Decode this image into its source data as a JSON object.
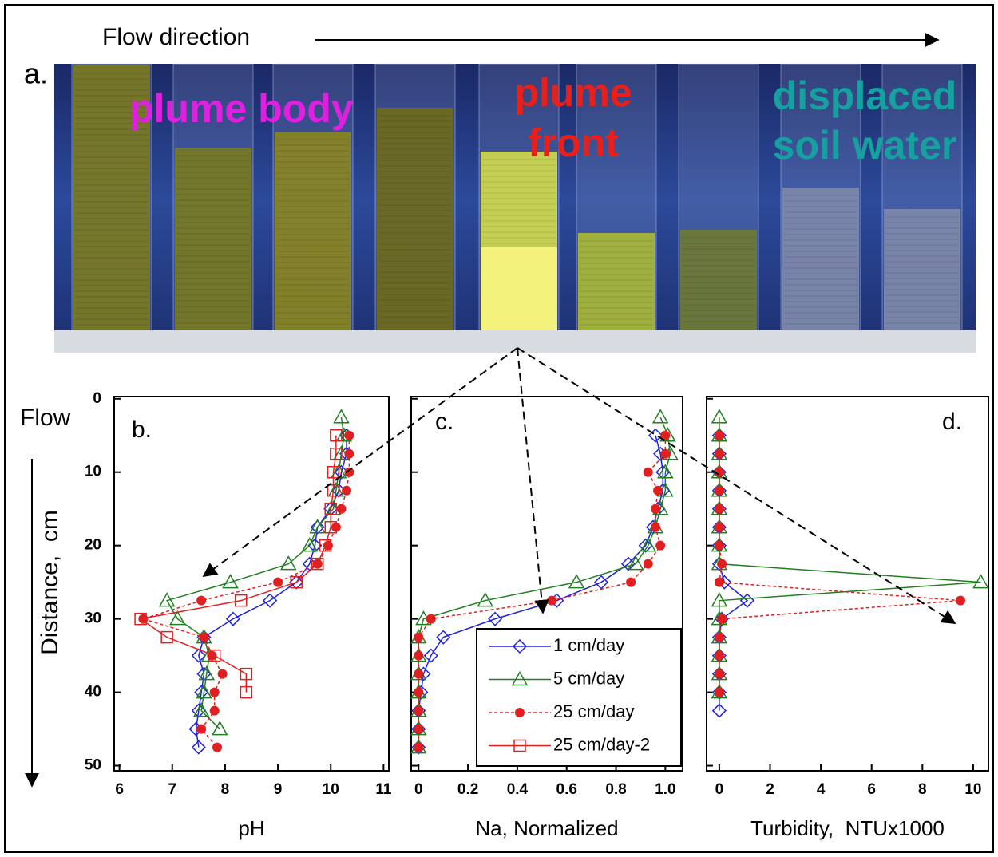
{
  "figure": {
    "flow_direction": "Flow direction",
    "panel_label": "a.",
    "plume_body": "plume body",
    "plume_front": [
      "plume",
      "front"
    ],
    "displaced": [
      "displaced",
      "soil water"
    ],
    "flow_label": "Flow"
  },
  "chart_data": [
    {
      "type": "line",
      "panel_label": "b.",
      "xlabel": "pH",
      "ylabel": "Distance,  cm",
      "xlim": [
        5.9,
        11.1
      ],
      "xticks": [
        6,
        7,
        8,
        9,
        10,
        11
      ],
      "ylim": [
        -0.3,
        50.7
      ],
      "y_inverted": true,
      "yticks": [
        0,
        10,
        20,
        30,
        40,
        50
      ],
      "series": [
        {
          "name": "1 cm/day",
          "color": "#2020e0",
          "marker": "diamond",
          "linestyle": "solid",
          "values": [
            5,
            7.5,
            10,
            12.5,
            15,
            17.5,
            20,
            22.5,
            25,
            27.5,
            30,
            32.5,
            35,
            37.5,
            40,
            42.5,
            45,
            47.5
          ],
          "x": [
            10.3,
            10.3,
            10.2,
            10.15,
            10.0,
            9.75,
            9.7,
            9.6,
            9.35,
            8.85,
            8.15,
            7.6,
            7.5,
            7.6,
            7.55,
            7.5,
            7.45,
            7.5
          ]
        },
        {
          "name": "5 cm/day",
          "color": "#208020",
          "marker": "triangle",
          "linestyle": "solid",
          "values": [
            2.5,
            5,
            7.5,
            10,
            12.5,
            15,
            17.5,
            20,
            22.5,
            25,
            27.5,
            30,
            32.5,
            35,
            37.5,
            40,
            42.5,
            45
          ],
          "x": [
            10.2,
            10.25,
            10.2,
            10.15,
            10.1,
            10.05,
            9.75,
            9.6,
            9.2,
            8.1,
            6.9,
            7.1,
            7.6,
            7.7,
            7.65,
            7.6,
            7.55,
            7.9
          ]
        },
        {
          "name": "25 cm/day",
          "color": "#e02020",
          "marker": "circle",
          "linestyle": "dashed",
          "values": [
            5,
            7.5,
            10,
            12.5,
            15,
            17.5,
            20,
            22.5,
            25,
            27.5,
            30,
            32.5,
            35,
            37.5,
            40,
            42.5,
            45,
            47.5
          ],
          "x": [
            10.35,
            10.35,
            10.35,
            10.3,
            10.2,
            10.1,
            9.95,
            9.75,
            9.0,
            7.55,
            6.45,
            7.6,
            7.75,
            7.95,
            7.8,
            7.8,
            7.55,
            7.85
          ]
        },
        {
          "name": "25 cm/day-2",
          "color": "#e02020",
          "marker": "square",
          "linestyle": "solid",
          "values": [
            5,
            7.5,
            10,
            12.5,
            15,
            17.5,
            20,
            22.5,
            25,
            27.5,
            30,
            32.5,
            35,
            37.5,
            40
          ],
          "x": [
            10.1,
            10.1,
            10.05,
            10.05,
            10.0,
            10.0,
            9.9,
            9.75,
            9.35,
            8.3,
            6.4,
            6.9,
            7.8,
            8.4,
            8.4
          ]
        }
      ]
    },
    {
      "type": "line",
      "panel_label": "c.",
      "xlabel": "Na, Normalized",
      "xlim": [
        -0.03,
        1.07
      ],
      "xticks": [
        0,
        0.2,
        0.4,
        0.6,
        0.8,
        {
          "value": 1,
          "label": "1.0"
        }
      ],
      "ylim": [
        -0.3,
        50.7
      ],
      "y_inverted": true,
      "series": [
        {
          "color": "#2020e0",
          "marker": "diamond",
          "linestyle": "solid",
          "values": [
            5,
            7.5,
            10,
            12.5,
            15,
            17.5,
            20,
            22.5,
            25,
            27.5,
            30,
            32.5,
            35,
            37.5,
            40,
            42.5,
            45,
            47.5
          ],
          "x": [
            0.96,
            0.98,
            0.99,
            0.99,
            0.97,
            0.95,
            0.92,
            0.85,
            0.74,
            0.56,
            0.31,
            0.1,
            0.05,
            0.02,
            0.01,
            0,
            0,
            0
          ]
        },
        {
          "color": "#208020",
          "marker": "triangle",
          "linestyle": "solid",
          "values": [
            2.5,
            5,
            7.5,
            10,
            12.5,
            15,
            17.5,
            20,
            22.5,
            25,
            27.5,
            30,
            32.5,
            35,
            37.5,
            40,
            42.5,
            45,
            47.5
          ],
          "x": [
            0.98,
            1.01,
            1.02,
            1.0,
            1.0,
            0.98,
            0.96,
            0.93,
            0.88,
            0.64,
            0.27,
            0.02,
            0,
            0,
            0,
            0,
            0,
            0,
            0
          ]
        },
        {
          "color": "#e02020",
          "marker": "circle",
          "linestyle": "dashed",
          "values": [
            5,
            7.5,
            10,
            12.5,
            15,
            17.5,
            20,
            22.5,
            25,
            27.5,
            30,
            32.5,
            35,
            37.5,
            40,
            42.5,
            45,
            47.5
          ],
          "x": [
            1.0,
            1.0,
            0.93,
            0.97,
            0.96,
            0.96,
            0.98,
            0.93,
            0.86,
            0.54,
            0.05,
            0,
            0,
            0,
            0,
            0,
            0,
            0
          ]
        }
      ]
    },
    {
      "type": "line",
      "panel_label": "d.",
      "xlabel": "Turbidity,  NTUx1000",
      "xlim": [
        -0.5,
        10.6
      ],
      "xticks": [
        0,
        2,
        4,
        6,
        8,
        10
      ],
      "ylim": [
        -0.3,
        50.7
      ],
      "y_inverted": true,
      "series": [
        {
          "color": "#2020e0",
          "marker": "diamond",
          "linestyle": "solid",
          "values": [
            5,
            7.5,
            10,
            12.5,
            15,
            17.5,
            20,
            22.5,
            25,
            27.5,
            30,
            32.5,
            35,
            37.5,
            40,
            42.5
          ],
          "x": [
            0,
            0,
            0,
            0,
            0,
            0,
            0,
            0,
            0.2,
            1.1,
            0.1,
            0,
            0,
            0,
            0,
            0
          ]
        },
        {
          "color": "#208020",
          "marker": "triangle",
          "linestyle": "solid",
          "values": [
            2.5,
            5,
            7.5,
            10,
            12.5,
            15,
            17.5,
            20,
            22.5,
            25,
            27.5,
            30,
            32.5,
            35,
            37.5,
            40
          ],
          "x": [
            0,
            0,
            0,
            0,
            0,
            0,
            0,
            0,
            0,
            10.3,
            0,
            0,
            0,
            0,
            0,
            0
          ]
        },
        {
          "color": "#e02020",
          "marker": "circle",
          "linestyle": "dashed",
          "values": [
            5,
            7.5,
            10,
            12.5,
            15,
            17.5,
            20,
            22.5,
            25,
            27.5,
            30,
            32.5,
            35,
            37.5,
            40
          ],
          "x": [
            0,
            0,
            0,
            0,
            0,
            0,
            0,
            0.1,
            0,
            9.5,
            0.1,
            0,
            0,
            0,
            0
          ]
        }
      ]
    }
  ]
}
